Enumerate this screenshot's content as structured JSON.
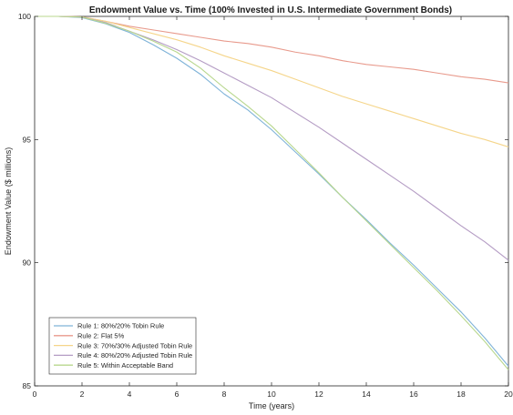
{
  "chart_data": {
    "type": "line",
    "title": "Endowment Value vs. Time (100% Invested in U.S. Intermediate Government Bonds)",
    "xlabel": "Time (years)",
    "ylabel": "Endowment Value ($ millions)",
    "xlim": [
      0,
      20
    ],
    "ylim": [
      85,
      100
    ],
    "xticks": [
      "0",
      "2",
      "4",
      "6",
      "8",
      "10",
      "12",
      "14",
      "16",
      "18",
      "20"
    ],
    "yticks": [
      "85",
      "90",
      "95",
      "100"
    ],
    "grid": false,
    "legend_position": "bottom-left",
    "x": [
      0,
      1,
      2,
      3,
      4,
      5,
      6,
      7,
      8,
      9,
      10,
      11,
      12,
      13,
      14,
      15,
      16,
      17,
      18,
      19,
      20
    ],
    "series": [
      {
        "name": "Rule 1: 80%/20% Tobin Rule",
        "color": "#7fb3d8",
        "values": [
          100,
          100,
          99.95,
          99.7,
          99.35,
          98.85,
          98.3,
          97.65,
          96.85,
          96.2,
          95.4,
          94.5,
          93.6,
          92.65,
          91.75,
          90.8,
          89.9,
          88.95,
          88.0,
          86.95,
          85.8
        ]
      },
      {
        "name": "Rule 2: Flat 5%",
        "color": "#e89a8c",
        "values": [
          100,
          100,
          99.98,
          99.8,
          99.6,
          99.45,
          99.3,
          99.15,
          99.0,
          98.9,
          98.75,
          98.55,
          98.4,
          98.2,
          98.05,
          97.95,
          97.85,
          97.7,
          97.55,
          97.45,
          97.3
        ]
      },
      {
        "name": "Rule 3: 70%/30% Adjusted Tobin Rule",
        "color": "#f5d58a",
        "values": [
          100,
          100,
          99.98,
          99.8,
          99.55,
          99.3,
          99.05,
          98.75,
          98.4,
          98.1,
          97.8,
          97.45,
          97.1,
          96.75,
          96.45,
          96.15,
          95.85,
          95.55,
          95.25,
          95.0,
          94.7
        ]
      },
      {
        "name": "Rule 4: 80%/20% Adjusted Tobin Rule",
        "color": "#b49cc4",
        "values": [
          100,
          100,
          99.97,
          99.75,
          99.4,
          99.05,
          98.65,
          98.2,
          97.7,
          97.2,
          96.7,
          96.1,
          95.5,
          94.85,
          94.2,
          93.55,
          92.9,
          92.2,
          91.5,
          90.85,
          90.1
        ]
      },
      {
        "name": "Rule 5: Within Acceptable Band",
        "color": "#b8d78e",
        "values": [
          100,
          100,
          99.97,
          99.72,
          99.4,
          99.0,
          98.55,
          97.9,
          97.1,
          96.35,
          95.55,
          94.6,
          93.65,
          92.65,
          91.7,
          90.75,
          89.8,
          88.85,
          87.85,
          86.8,
          85.65
        ]
      }
    ]
  }
}
